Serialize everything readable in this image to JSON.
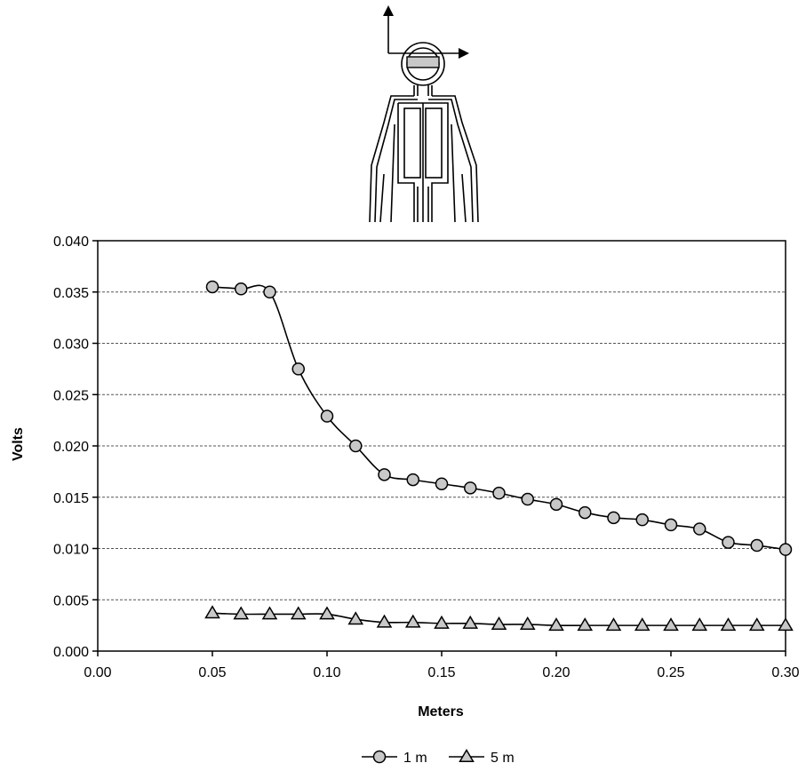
{
  "chart_data": {
    "type": "line",
    "xlabel": "Meters",
    "ylabel": "Volts",
    "xlim": [
      0,
      0.3
    ],
    "ylim": [
      0,
      0.04
    ],
    "x_ticks": [
      "0.00",
      "0.05",
      "0.10",
      "0.15",
      "0.20",
      "0.25",
      "0.30"
    ],
    "y_ticks": [
      "0.000",
      "0.005",
      "0.010",
      "0.015",
      "0.020",
      "0.025",
      "0.030",
      "0.035",
      "0.040"
    ],
    "grid": "horizontal dashed",
    "legend_position": "bottom",
    "series": [
      {
        "name": "1 m",
        "marker": "circle",
        "color": "#c8c8c8",
        "x": [
          0.05,
          0.0625,
          0.075,
          0.0875,
          0.1,
          0.1125,
          0.125,
          0.1375,
          0.15,
          0.1625,
          0.175,
          0.1875,
          0.2,
          0.2125,
          0.225,
          0.2375,
          0.25,
          0.2625,
          0.275,
          0.2875,
          0.3
        ],
        "values": [
          0.0355,
          0.0353,
          0.035,
          0.0275,
          0.0229,
          0.02,
          0.0172,
          0.0167,
          0.0163,
          0.0159,
          0.0154,
          0.0148,
          0.0143,
          0.0135,
          0.013,
          0.0128,
          0.0123,
          0.0119,
          0.0106,
          0.0103,
          0.0099
        ]
      },
      {
        "name": "5 m",
        "marker": "triangle",
        "color": "#c8c8c8",
        "x": [
          0.05,
          0.0625,
          0.075,
          0.0875,
          0.1,
          0.1125,
          0.125,
          0.1375,
          0.15,
          0.1625,
          0.175,
          0.1875,
          0.2,
          0.2125,
          0.225,
          0.2375,
          0.25,
          0.2625,
          0.275,
          0.2875,
          0.3
        ],
        "values": [
          0.0037,
          0.0036,
          0.0036,
          0.0036,
          0.0036,
          0.0031,
          0.0028,
          0.0028,
          0.0027,
          0.0027,
          0.0026,
          0.0026,
          0.0025,
          0.0025,
          0.0025,
          0.0025,
          0.0025,
          0.0025,
          0.0025,
          0.0025,
          0.0025
        ]
      }
    ]
  }
}
